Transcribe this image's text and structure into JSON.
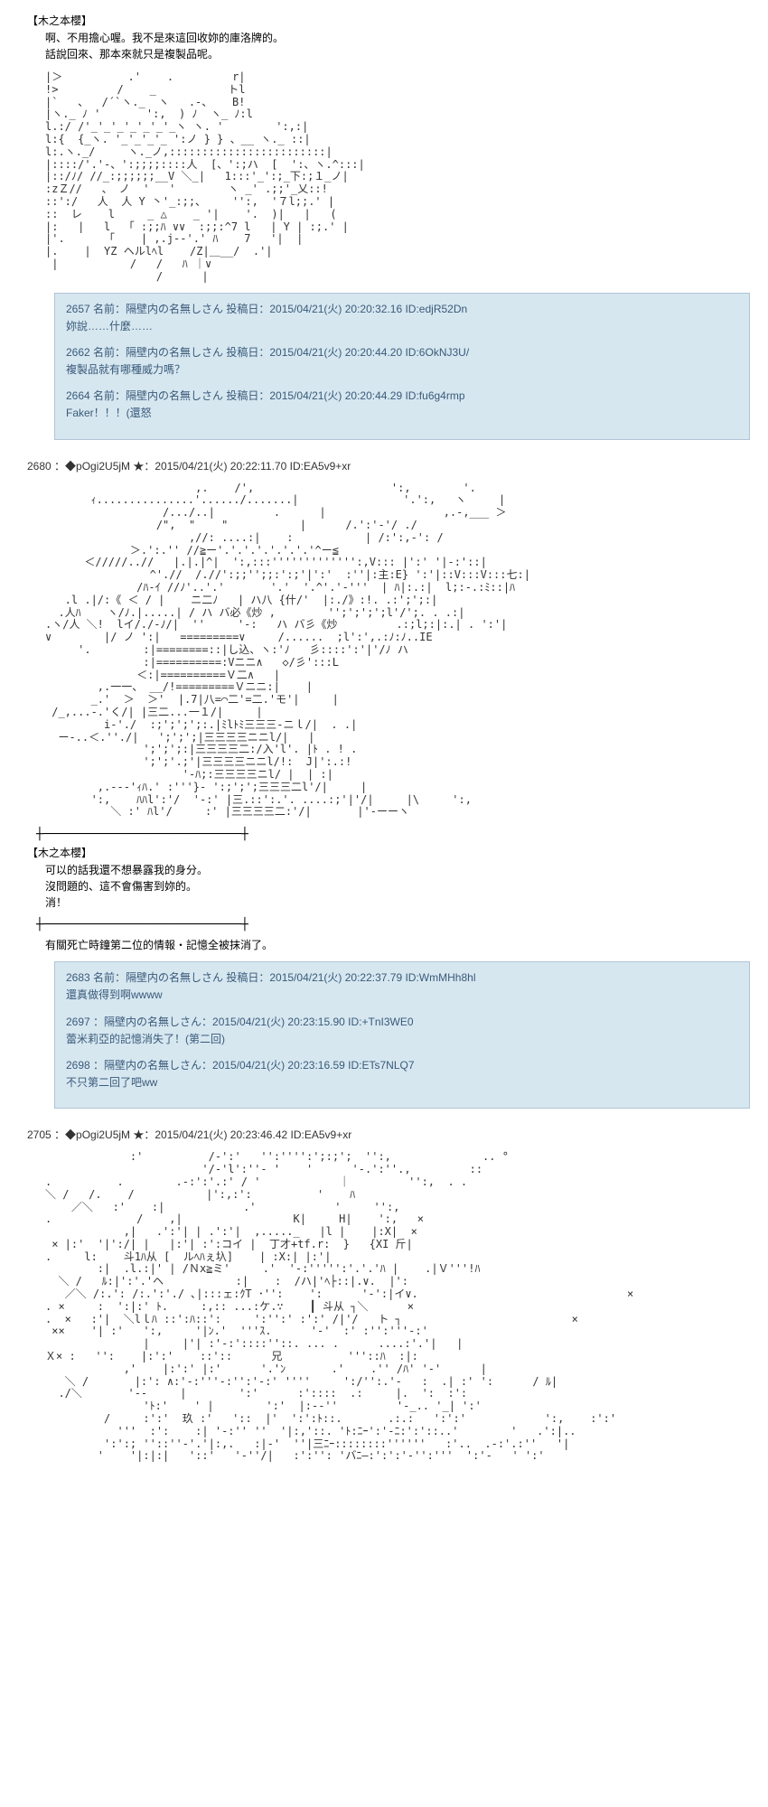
{
  "post1": {
    "char_name": "【木之本櫻】",
    "dialogue": "啊、不用擔心喔。我不是來這回收妳的庫洛牌的。\n話說回來、那本來就只是複製品呢。",
    "aa": "|＞          .'    .         r|\n!>         /    _           トl\n|`   、  /´`ヽ._  ヽ   .-、   B!\n|ヽ._ ﾉ '       ':,  ) ﾉ  ヽ_ ﾉ:l\nl.:/ /'_'_'_'_'_'_'_ヽ ヽ. '        ':,:|\nl:{  {_ヽ. '_'_'_'_ ':ノ } } 、__ ヽ._ ::|\nl:.ヽ._/     ヽ._ノ,::::::::::::::::::::::::|\n|::::/'.'-、':;;;;::::人  [、':;ハ  [  ':、ヽ.^:::|\n|::/ﾉ/ //_:;;;;;;__V ＼_|   1:::'_':;_下:;１_ノ|\n:zＺ//   、 ノ  '   '        ヽ _' .;;'_乂::!\n::':/   人  人 Y 丶'_:;;、    '':,  '７l;;.' |\n::  レ    l     _ △    _ '|    '.  )|   |   (\n|:   |   l  「 :;;ﾊ ∨∨  :;;:^7 l   | Y | :;.' |\n|'.      「    | ,.j--'.' ﾊ    7   '|  |\n|.    |  YZ ヘルlﾍl    /Z|＿__/  .'|\n |           /   /   ﾊ ｜∨\n                 /      |",
    "replies": [
      {
        "header": "2657 名前：隔壁内の名無しさん 投稿日：2015/04/21(火) 20:20:32.16 ID:edjR52Dn",
        "body": "妳說……什麼……"
      },
      {
        "header": "2662 名前：隔壁内の名無しさん 投稿日：2015/04/21(火) 20:20:44.20 ID:6OkNJ3U/",
        "body": "複製品就有哪種威力嗎？"
      },
      {
        "header": "2664 名前：隔壁内の名無しさん 投稿日：2015/04/21(火) 20:20:44.29 ID:fu6g4rmp",
        "body": "Faker！！！(還怒"
      }
    ]
  },
  "post2": {
    "header": "2680 ：◆pOgi2U5jM ★：2015/04/21(火) 20:22:11.70 ID:EA5v9+xr",
    "aa": "                       ,.    /',                     ':,        '.\n       ｨ...............'....../.......|                '.':,   ヽ     |\n                  /.../..|         .      |                  ,.-,___ ＞\n                 /\",  \"    \"           |      /.':'-'/ ./\n                      ,//: ....:|    :           | /:':,-': /\n             ＞.':.'' //≧ー'.'.'.'.'.'.'.'^ー≦\n      ＜/////..//   |.|.|^|  ':,:::''''''''''''':,V::: |':' '|-:'::|\n                ^'.//  /.//':;;'';;:':;'|':'  :''|:主:E} ':'|::V:::V:::七:|\n              /ﾊ-ｲ //ﾉ'..'.'       '.'  '.^'.'-'''  | ﾊ|:.:|  l;:-.:ﾐ::|ﾊ\n   .l .|/:《 ＜ / |    ニ二ﾉ   | ハ八 {什/'  |:./》:!. .:';';:|\n  .人ﾊ    ヽ/ﾉ.|.....| / ハ バ必《炒 ,        '';';';';l'/';. . .:|\n.ヽ/人 ＼!  lイ/./-ﾉ/|  ''     '-:   ハ バ彡《炒         .:;l;:|:.| . ':'|\n∨        |/ ノ ':|   =========∨     /......  ;l':',.:ﾉ:ﾉ..IE\n     '.        :|========::|し込、ヽ:'ﾉ   彡::::':'|'/ﾉ ハ\n               :|==========:Vニニ∧   ◇/彡':::L\n              ＜:|==========Ｖ二∧   |\n        ,.一一、 __/!=========Ｖニニ:|    |\n       _.'  ＞  ＞'  |.7|八=⌒二'=二.'モ'|     |\n /_,...-.'く/| |三二...一１/|     |\n         i‐'./  :;';';';:.|ﾐlﾄﾐ三三三-ニｌ/|  . .|\n  ー‐..＜.''./|   ';';';|三三三三ニニl/|   |\n               ';';';:|三三三三二:/入'l'. |ﾄ . ! .\n               ';';'.;'|三三三三ニニl/!:  J|':.:!\n                     '-ﾊ;:三三三三ニl/ |  | :|\n        ,.---'ｨﾊ.' :'''}- ':;';';三三三二l'/|     |\n       ':,    ﾊﾊl':'/  '-:' |三.::':.'. ....:;'|'/|     |\\     ':,\n          ＼ :' ﾊl'/     :' |三三三三二:'/|       |'-ーーヽ",
    "divider": "┼────────────────────────────┼",
    "char_name": "【木之本櫻】",
    "dialogue": "可以的話我還不想暴露我的身分。\n沒問題的、這不會傷害到妳的。\n消！",
    "divider2": "┼────────────────────────────┼",
    "narration": "有關死亡時鐘第二位的情報・記憶全被抹消了。",
    "replies": [
      {
        "header": "2683 名前：隔壁内の名無しさん 投稿日：2015/04/21(火) 20:22:37.79 ID:WmMHh8hl",
        "body": "還真做得到啊wwww"
      },
      {
        "header": "2697 ：隔壁内の名無しさん：2015/04/21(火) 20:23:15.90 ID:+TnI3WE0",
        "body": "蕾米莉亞的記憶消失了！(第二回)"
      },
      {
        "header": "2698 ：隔壁内の名無しさん：2015/04/21(火) 20:23:16.59 ID:ETs7NLQ7",
        "body": "不只第二回了吧ww"
      }
    ]
  },
  "post3": {
    "header": "2705 ：◆pOgi2U5jM ★：2015/04/21(火) 20:23:46.42 ID:EA5v9+xr",
    "aa": "             :'          /-':'   '':'''':';:;';  '':,              .. °\n                        '/-'l':''- '    '      '-.':''.,         ::\n.          .        .-:':'.:' / '            ｜         '':,  . .\n＼ /   /.    /           |':,:':          '    ﾊ\n    ／＼   :'    :|            .'            '     '':,\n.             /    ,|                 K|     H|    ':,   ×\n            ,|   .':'| | .':'|  ,....._   |l |    |:X|  ×\n × |:'  '|':/| |   |:'| :':コイ |  丁才+tf.r:  }   {XI 斤|\n.     l:    斗1ﾊ从 [  ルﾍﾊぇ圦]    | :X:| |:'|\n        :|  .l.:|' | /Ｎx≧ミ'     .'  '-:''''':'.'.'ﾊ |    .|Ｖ'''!ﾊ\n  ＼ /   ﾙ:|':'.'ヘ           :|    :  /ハ|'ﾍ├::|.∨.  |':\n   ／＼ /:.': /:.':'./ ､|:::ェ:ｸT ･'':    ':      '-':|イ∨.                                ×\n. ×     :  ':|:' ﾄ.     :,:: ...:ケ.∵    ┃ 斗从 ┐＼      ×\n.  ×   :'|  ＼lｌﾊ ::':ﾊ::':     ':'':' :':' /|'/   ト ┐                          ×\n ××    '| :'   ':,     '|ﾝ.'  '''ｽ.      '-'  :' :'':'''-:'\n               |     |'| :'-:'::::''::. ... .      ....:'.'|   |\nＸ× :   '':    |:':'    ::'::      兄          '''::ﾊ  :|:\n            ,'    |:':' |:'      '.'ﾝ       .'    .'' /ﾊ' '-'      |\n   ＼ /       |:': ∧:'-:'''-:'':'-:' ''''     ':/'':.'-   :  .| :' ':      / ﾙ|\n  ./＼       '--     |        ':'      :'::::  .:     |.  ':  :':\n               'ﾄ:'    ' |        ':'  |:--''         '-_.. '_| ':'\n         /     :':'  玖 :'   '::  |'  ':':ﾄ::.       .:.:   ':':'            ':,    :':'\n           '''  :':    :| '-:'' ''  '|:,'::. 'ﾄ:ﾆｰ':'-ﾆ:':'::..'        '   .':|..\n         ':':; ''::''-'.'|:,.   :|-'  ''|三ﾆｰ::::::::''''''   :'..  .-:'.:''   '|\n        '    '|:|:|   '::'   '-''/|   :':'': 'バﾆ—:':':'-'':'''  ':'-   ' ':'"
  }
}
